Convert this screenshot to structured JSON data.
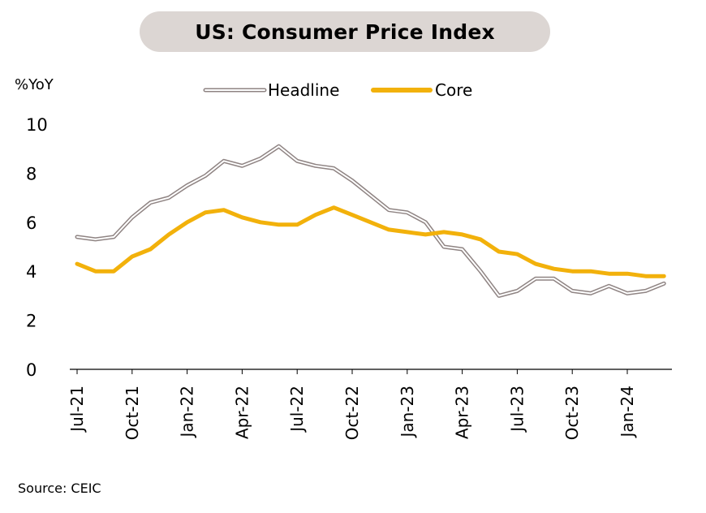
{
  "chart_data": {
    "type": "line",
    "title": "US: Consumer Price Index",
    "ylabel": "%YoY",
    "ylim": [
      0,
      10
    ],
    "yticks": [
      0,
      2,
      4,
      6,
      8,
      10
    ],
    "x": [
      "Jul-21",
      "Aug-21",
      "Sep-21",
      "Oct-21",
      "Nov-21",
      "Dec-21",
      "Jan-22",
      "Feb-22",
      "Mar-22",
      "Apr-22",
      "May-22",
      "Jun-22",
      "Jul-22",
      "Aug-22",
      "Sep-22",
      "Oct-22",
      "Nov-22",
      "Dec-22",
      "Jan-23",
      "Feb-23",
      "Mar-23",
      "Apr-23",
      "May-23",
      "Jun-23",
      "Jul-23",
      "Aug-23",
      "Sep-23",
      "Oct-23",
      "Nov-23",
      "Dec-23",
      "Jan-24",
      "Feb-24",
      "Mar-24"
    ],
    "xtick_labels": [
      "Jul-21",
      "Oct-21",
      "Jan-22",
      "Apr-22",
      "Jul-22",
      "Oct-22",
      "Jan-23",
      "Apr-23",
      "Jul-23",
      "Oct-23",
      "Jan-24"
    ],
    "legend_position": "top-center",
    "grid": false,
    "series": [
      {
        "name": "Headline",
        "style": "double-line",
        "color": "#8f8483",
        "values": [
          5.4,
          5.3,
          5.4,
          6.2,
          6.8,
          7.0,
          7.5,
          7.9,
          8.5,
          8.3,
          8.6,
          9.1,
          8.5,
          8.3,
          8.2,
          7.7,
          7.1,
          6.5,
          6.4,
          6.0,
          5.0,
          4.9,
          4.0,
          3.0,
          3.2,
          3.7,
          3.7,
          3.2,
          3.1,
          3.4,
          3.1,
          3.2,
          3.5
        ]
      },
      {
        "name": "Core",
        "style": "solid",
        "color": "#f2b10b",
        "values": [
          4.3,
          4.0,
          4.0,
          4.6,
          4.9,
          5.5,
          6.0,
          6.4,
          6.5,
          6.2,
          6.0,
          5.9,
          5.9,
          6.3,
          6.6,
          6.3,
          6.0,
          5.7,
          5.6,
          5.5,
          5.6,
          5.5,
          5.3,
          4.8,
          4.7,
          4.3,
          4.1,
          4.0,
          4.0,
          3.9,
          3.9,
          3.8,
          3.8
        ]
      }
    ]
  },
  "source": "Source: CEIC"
}
